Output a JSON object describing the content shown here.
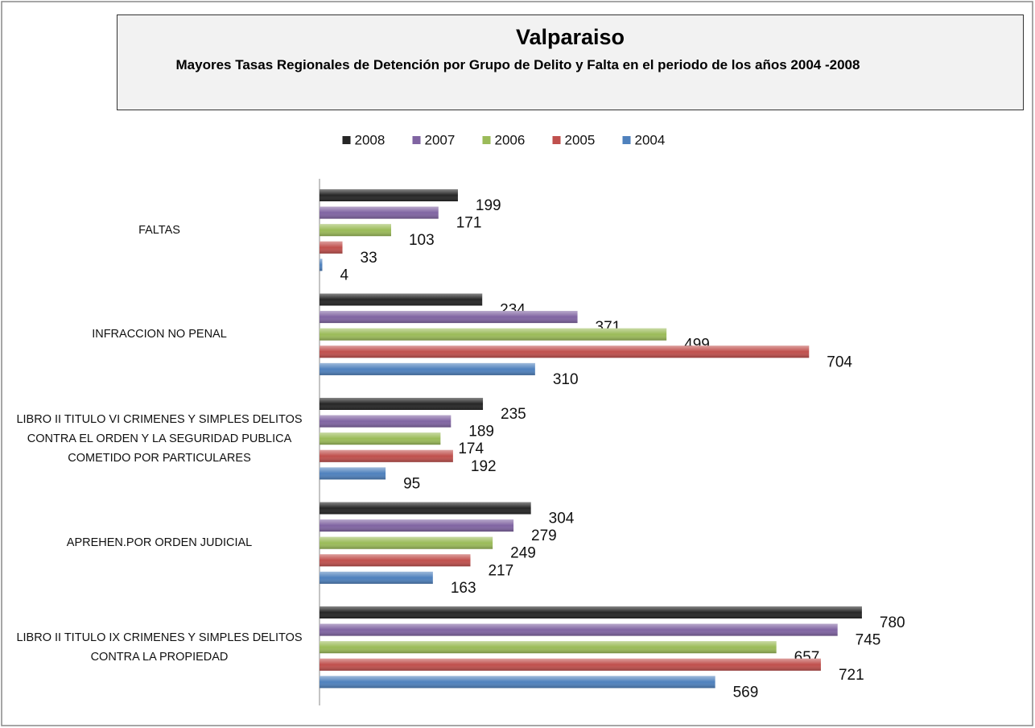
{
  "chart_data": {
    "type": "hbar",
    "title": "Valparaiso",
    "subtitle": "Mayores Tasas  Regionales  de Detención por Grupo de Delito y Falta  en el periodo  de los años 2004 -2008",
    "categories": [
      "FALTAS",
      "INFRACCION NO PENAL",
      "LIBRO II  TITULO VI  CRIMENES Y SIMPLES DELITOS CONTRA EL ORDEN Y LA SEGURIDAD PUBLICA COMETIDO POR PARTICULARES",
      "APREHEN.POR ORDEN JUDICIAL",
      "LIBRO II TITULO IX CRIMENES Y SIMPLES DELITOS CONTRA LA PROPIEDAD"
    ],
    "series": [
      {
        "name": "2008",
        "color": "#262626",
        "values": [
          199,
          234,
          235,
          304,
          780
        ]
      },
      {
        "name": "2007",
        "color": "#8064a2",
        "values": [
          171,
          371,
          189,
          279,
          745
        ]
      },
      {
        "name": "2006",
        "color": "#9bbb59",
        "values": [
          103,
          499,
          174,
          249,
          657
        ]
      },
      {
        "name": "2005",
        "color": "#c0504d",
        "values": [
          33,
          704,
          192,
          217,
          721
        ]
      },
      {
        "name": "2004",
        "color": "#4f81bd",
        "values": [
          4,
          310,
          95,
          163,
          569
        ]
      }
    ],
    "xlim": [
      0,
      900
    ],
    "legend": "top"
  }
}
